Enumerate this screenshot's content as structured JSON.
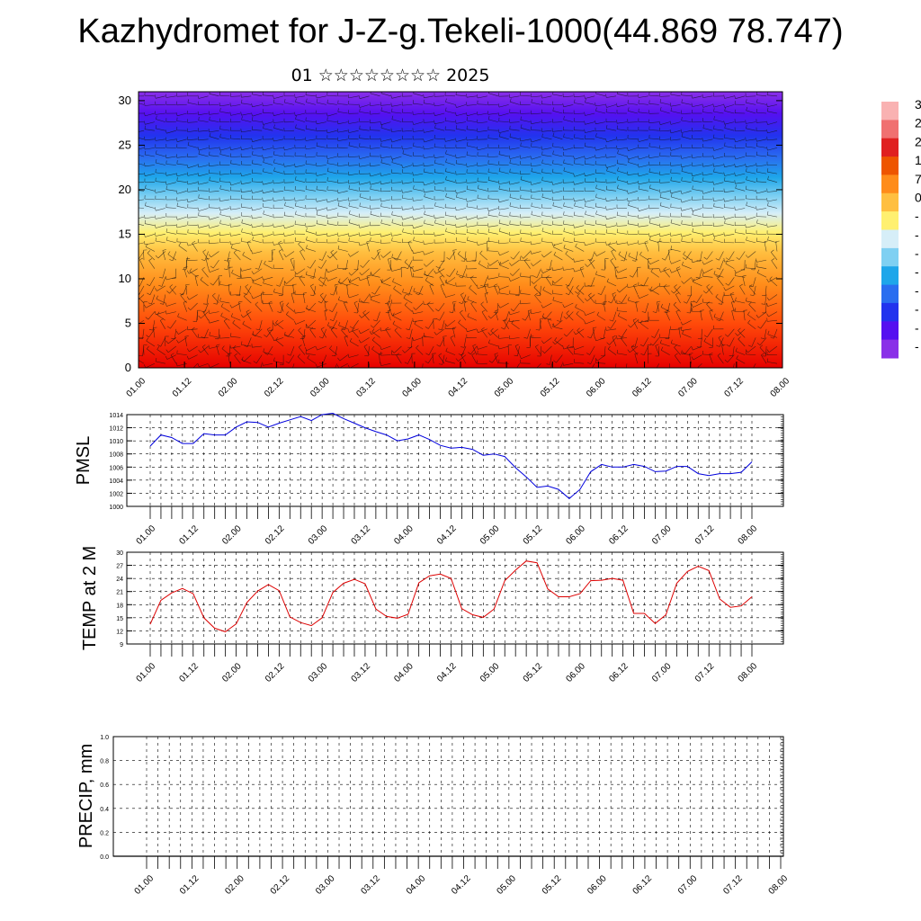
{
  "title": "Kazhydromet for J-Z-g.Tekeli-1000(44.869 78.747)",
  "subtitle": "01 ☆☆☆☆☆☆☆☆ 2025",
  "time_tick_labels": [
    "01.00",
    "01.12",
    "02.00",
    "02.12",
    "03.00",
    "03.12",
    "04.00",
    "04.12",
    "05.00",
    "05.12",
    "06.00",
    "06.12",
    "07.00",
    "07.12",
    "08.00"
  ],
  "colorbar": {
    "labels": [
      "3",
      "2",
      "2",
      "1",
      "7",
      "0",
      "-",
      "-",
      "-",
      "-",
      "-",
      "-",
      "-",
      "-"
    ],
    "colors": [
      "#f9b2b2",
      "#f07070",
      "#e02020",
      "#ee5500",
      "#ff8c1a",
      "#ffbf40",
      "#fff070",
      "#d6eef8",
      "#7fd0f2",
      "#1ea6ea",
      "#2a6ef0",
      "#2233ee",
      "#5510f0",
      "#8a30e8"
    ]
  },
  "chart_data": [
    {
      "type": "heatmap",
      "title": "01 ☆☆☆☆☆☆☆☆ 2025",
      "xlabel": "",
      "ylabel": "",
      "ylim": [
        0,
        31
      ],
      "y_ticks": [
        0,
        5,
        10,
        15,
        20,
        25,
        30
      ],
      "x": [
        "01.00",
        "01.12",
        "02.00",
        "02.12",
        "03.00",
        "03.12",
        "04.00",
        "04.12",
        "05.00",
        "05.12",
        "06.00",
        "06.12",
        "07.00",
        "07.12",
        "08.00"
      ],
      "overlay": "wind barbs",
      "color_by_level_note": "warm (red/orange) near level 0, yellow near level 15, blue near 20, purple near 30"
    },
    {
      "type": "line",
      "ylabel": "PMSL",
      "ylim": [
        1000,
        1014
      ],
      "y_ticks": [
        1000,
        1002,
        1004,
        1006,
        1008,
        1010,
        1012,
        1014
      ],
      "color": "#0000dd",
      "x_step_hours": 3,
      "values": [
        1009.2,
        1010.9,
        1010.5,
        1009.6,
        1009.6,
        1011.1,
        1010.9,
        1010.9,
        1012.1,
        1012.9,
        1012.8,
        1012.1,
        1012.7,
        1013.2,
        1013.7,
        1013.1,
        1014.0,
        1014.2,
        1013.4,
        1012.7,
        1012.0,
        1011.4,
        1010.9,
        1010.0,
        1010.3,
        1010.9,
        1010.2,
        1009.3,
        1008.9,
        1009.0,
        1008.7,
        1007.8,
        1008.0,
        1007.6,
        1005.9,
        1004.5,
        1002.9,
        1003.1,
        1002.6,
        1001.2,
        1002.6,
        1005.3,
        1006.4,
        1006.0,
        1006.0,
        1006.4,
        1006.1,
        1005.3,
        1005.4,
        1006.1,
        1006.1,
        1005.0,
        1004.7,
        1005.0,
        1005.0,
        1005.2,
        1006.8
      ]
    },
    {
      "type": "line",
      "ylabel": "TEMP at 2 M",
      "ylim": [
        9,
        30
      ],
      "y_ticks": [
        9,
        12,
        15,
        18,
        21,
        24,
        27,
        30
      ],
      "color": "#dd0000",
      "x_step_hours": 3,
      "values": [
        13.5,
        19.0,
        20.7,
        21.7,
        20.5,
        15.0,
        12.6,
        11.8,
        13.6,
        18.5,
        21.1,
        22.6,
        21.2,
        15.2,
        13.9,
        13.2,
        15.0,
        20.8,
        22.9,
        23.8,
        22.8,
        17.0,
        15.3,
        14.9,
        15.8,
        23.0,
        24.6,
        25.0,
        24.0,
        17.1,
        15.7,
        15.1,
        17.0,
        23.5,
        25.9,
        28.0,
        27.6,
        21.6,
        19.8,
        19.8,
        20.5,
        23.5,
        23.6,
        24.0,
        23.6,
        16.0,
        16.0,
        13.7,
        15.7,
        22.9,
        25.6,
        26.8,
        25.8,
        19.3,
        17.4,
        17.7,
        19.8
      ]
    },
    {
      "type": "line",
      "ylabel": "PRECIP, mm",
      "ylim": [
        0,
        1
      ],
      "y_ticks": [
        "0.0",
        "0.2",
        "0.4",
        "0.6",
        "0.8",
        "1.0"
      ],
      "color": "#000000",
      "values": []
    }
  ]
}
